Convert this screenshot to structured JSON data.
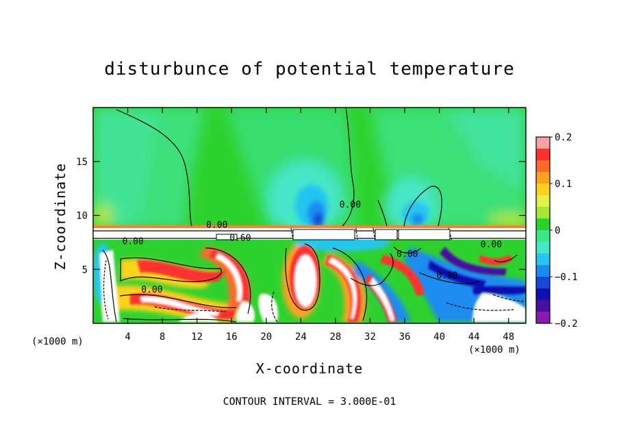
{
  "chart_data": {
    "type": "heatmap",
    "title": "disturbunce of potential temperature",
    "xlabel": "X-coordinate",
    "ylabel": "Z-coordinate",
    "x_unit": "(×1000 m)",
    "xlim": [
      0,
      50
    ],
    "ylim": [
      0,
      20
    ],
    "x_ticks": [
      4,
      8,
      12,
      16,
      20,
      24,
      28,
      32,
      36,
      40,
      44,
      48
    ],
    "y_ticks": [
      5,
      10,
      15
    ],
    "colorbar": {
      "range": [
        -0.2,
        0.2
      ],
      "tick_values": [
        0.2,
        0.1,
        0,
        -0.1,
        -0.2
      ],
      "tick_labels": [
        "0.2",
        "0.1",
        "0",
        "−0.1",
        "−0.2"
      ],
      "colors": [
        "#f7a3a3",
        "#ff3030",
        "#ff6a2a",
        "#ffa020",
        "#ffd21a",
        "#e6f04a",
        "#a6e634",
        "#2bd42b",
        "#3de686",
        "#45e6c8",
        "#26c6f0",
        "#1a8cf0",
        "#1448d8",
        "#1010b0",
        "#4810a0",
        "#8a18b4"
      ]
    },
    "contour_labels": [
      {
        "text": "0.00",
        "x": 29.7,
        "z": 11.0
      },
      {
        "text": "0.00",
        "x": 14.3,
        "z": 9.1
      },
      {
        "text": "0.60",
        "x": 17.0,
        "z": 7.9
      },
      {
        "text": "0.00",
        "x": 4.6,
        "z": 7.6
      },
      {
        "text": "0.00",
        "x": 6.8,
        "z": 3.1
      },
      {
        "text": "0.00",
        "x": 36.3,
        "z": 6.4
      },
      {
        "text": "0.00",
        "x": 40.9,
        "z": 4.4
      },
      {
        "text": "0.00",
        "x": 46.0,
        "z": 7.3
      }
    ],
    "contour_interval": "CONTOUR INTERVAL = 3.000E-01"
  }
}
